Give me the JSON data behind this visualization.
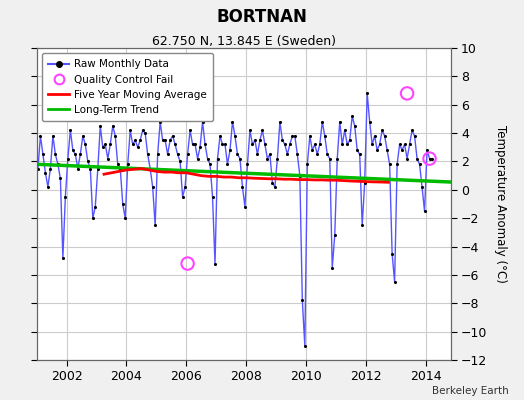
{
  "title": "BORTNAN",
  "subtitle": "62.750 N, 13.845 E (Sweden)",
  "ylabel": "Temperature Anomaly (°C)",
  "watermark": "Berkeley Earth",
  "xlim": [
    2001.0,
    2014.83
  ],
  "ylim": [
    -12,
    10
  ],
  "yticks": [
    -12,
    -10,
    -8,
    -6,
    -4,
    -2,
    0,
    2,
    4,
    6,
    8,
    10
  ],
  "xticks": [
    2002,
    2004,
    2006,
    2008,
    2010,
    2012,
    2014
  ],
  "bg_color": "#f0f0f0",
  "plot_bg": "#ffffff",
  "grid_color": "#cccccc",
  "raw_color": "#5555ff",
  "dot_color": "#000000",
  "ma_color": "#ff0000",
  "trend_color": "#00bb00",
  "qc_color": "#ff44ff",
  "raw_times": [
    2001.042,
    2001.125,
    2001.208,
    2001.292,
    2001.375,
    2001.458,
    2001.542,
    2001.625,
    2001.708,
    2001.792,
    2001.875,
    2001.958,
    2002.042,
    2002.125,
    2002.208,
    2002.292,
    2002.375,
    2002.458,
    2002.542,
    2002.625,
    2002.708,
    2002.792,
    2002.875,
    2002.958,
    2003.042,
    2003.125,
    2003.208,
    2003.292,
    2003.375,
    2003.458,
    2003.542,
    2003.625,
    2003.708,
    2003.792,
    2003.875,
    2003.958,
    2004.042,
    2004.125,
    2004.208,
    2004.292,
    2004.375,
    2004.458,
    2004.542,
    2004.625,
    2004.708,
    2004.792,
    2004.875,
    2004.958,
    2005.042,
    2005.125,
    2005.208,
    2005.292,
    2005.375,
    2005.458,
    2005.542,
    2005.625,
    2005.708,
    2005.792,
    2005.875,
    2005.958,
    2006.042,
    2006.125,
    2006.208,
    2006.292,
    2006.375,
    2006.458,
    2006.542,
    2006.625,
    2006.708,
    2006.792,
    2006.875,
    2006.958,
    2007.042,
    2007.125,
    2007.208,
    2007.292,
    2007.375,
    2007.458,
    2007.542,
    2007.625,
    2007.708,
    2007.792,
    2007.875,
    2007.958,
    2008.042,
    2008.125,
    2008.208,
    2008.292,
    2008.375,
    2008.458,
    2008.542,
    2008.625,
    2008.708,
    2008.792,
    2008.875,
    2008.958,
    2009.042,
    2009.125,
    2009.208,
    2009.292,
    2009.375,
    2009.458,
    2009.542,
    2009.625,
    2009.708,
    2009.792,
    2009.875,
    2009.958,
    2010.042,
    2010.125,
    2010.208,
    2010.292,
    2010.375,
    2010.458,
    2010.542,
    2010.625,
    2010.708,
    2010.792,
    2010.875,
    2010.958,
    2011.042,
    2011.125,
    2011.208,
    2011.292,
    2011.375,
    2011.458,
    2011.542,
    2011.625,
    2011.708,
    2011.792,
    2011.875,
    2011.958,
    2012.042,
    2012.125,
    2012.208,
    2012.292,
    2012.375,
    2012.458,
    2012.542,
    2012.625,
    2012.708,
    2012.792,
    2012.875,
    2012.958,
    2013.042,
    2013.125,
    2013.208,
    2013.292,
    2013.375,
    2013.458,
    2013.542,
    2013.625,
    2013.708,
    2013.792,
    2013.875,
    2013.958,
    2014.042,
    2014.125,
    2014.208
  ],
  "raw_data": [
    1.5,
    3.8,
    2.5,
    1.2,
    0.2,
    1.5,
    3.8,
    2.5,
    1.8,
    0.8,
    -4.8,
    -0.5,
    2.2,
    4.2,
    2.8,
    2.5,
    1.5,
    2.5,
    3.8,
    3.2,
    2.0,
    1.5,
    -2.0,
    -1.2,
    1.5,
    4.5,
    3.0,
    3.2,
    2.2,
    3.2,
    4.5,
    3.8,
    1.8,
    1.5,
    -1.0,
    -2.0,
    1.8,
    4.2,
    3.2,
    3.5,
    3.0,
    3.5,
    4.2,
    4.0,
    2.5,
    1.5,
    0.2,
    -2.5,
    2.5,
    4.8,
    3.5,
    3.5,
    2.5,
    3.5,
    3.8,
    3.2,
    2.5,
    2.0,
    -0.5,
    0.2,
    2.5,
    4.2,
    3.2,
    3.2,
    2.2,
    3.0,
    4.8,
    3.2,
    2.2,
    1.8,
    -0.5,
    -5.2,
    2.2,
    3.8,
    3.2,
    3.2,
    1.8,
    2.8,
    4.8,
    3.8,
    2.5,
    2.2,
    0.2,
    -1.2,
    1.8,
    4.2,
    3.2,
    3.5,
    2.5,
    3.5,
    4.2,
    3.2,
    2.2,
    2.5,
    0.5,
    0.2,
    2.2,
    4.8,
    3.5,
    3.2,
    2.5,
    3.2,
    3.8,
    3.8,
    2.5,
    1.0,
    -7.8,
    -11.0,
    1.8,
    3.8,
    2.8,
    3.2,
    2.5,
    3.2,
    4.8,
    3.8,
    2.5,
    2.2,
    -5.5,
    -3.2,
    2.2,
    4.8,
    3.2,
    4.2,
    3.2,
    3.5,
    5.2,
    4.5,
    2.8,
    2.5,
    -2.5,
    0.5,
    6.8,
    4.8,
    3.2,
    3.8,
    2.8,
    3.2,
    4.2,
    3.8,
    2.8,
    1.8,
    -4.5,
    -6.5,
    1.8,
    3.2,
    2.8,
    3.2,
    2.2,
    3.2,
    4.2,
    3.8,
    2.2,
    1.8,
    0.2,
    -1.5,
    2.8,
    2.2,
    2.2
  ],
  "qc_times": [
    2006.042,
    2013.375,
    2014.125
  ],
  "qc_values": [
    -5.2,
    6.8,
    2.2
  ],
  "trend_x": [
    2001.0,
    2014.83
  ],
  "trend_y": [
    1.8,
    0.55
  ],
  "ma_times": [
    2003.25,
    2003.5,
    2003.75,
    2004.0,
    2004.25,
    2004.5,
    2004.75,
    2005.0,
    2005.25,
    2005.5,
    2005.75,
    2006.0,
    2006.25,
    2006.5,
    2006.75,
    2007.0,
    2007.25,
    2007.5,
    2007.75,
    2008.0,
    2008.25,
    2008.5,
    2008.75,
    2009.0,
    2009.25,
    2009.5,
    2009.75,
    2010.0,
    2010.25,
    2010.5,
    2010.75,
    2011.0,
    2011.25,
    2011.5,
    2011.75,
    2012.0,
    2012.25,
    2012.5,
    2012.75
  ],
  "ma_values": [
    1.1,
    1.2,
    1.3,
    1.4,
    1.45,
    1.5,
    1.4,
    1.3,
    1.25,
    1.25,
    1.2,
    1.2,
    1.1,
    1.0,
    0.95,
    0.95,
    0.9,
    0.9,
    0.85,
    0.85,
    0.82,
    0.8,
    0.78,
    0.78,
    0.75,
    0.75,
    0.72,
    0.72,
    0.7,
    0.7,
    0.68,
    0.68,
    0.65,
    0.62,
    0.6,
    0.58,
    0.56,
    0.55,
    0.53
  ]
}
